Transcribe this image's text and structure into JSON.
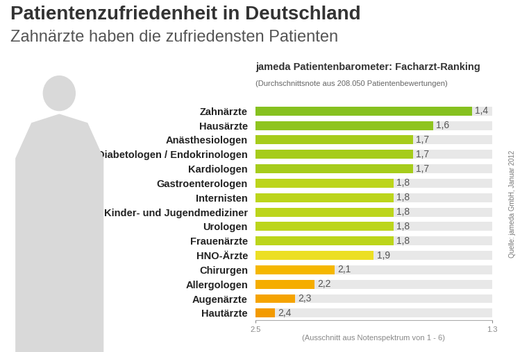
{
  "chart_data": {
    "type": "bar",
    "orientation": "horizontal",
    "title": "Patientenzufriedenheit in Deutschland",
    "subtitle": "Zahnärzte haben die zufriedensten Patienten",
    "chart_title": "jameda Patientenbarometer: Facharzt-Ranking",
    "chart_note": "(Durchschnittsnote aus 208.050 Patientenbewertungen)",
    "source": "Quelle: jameda GmbH, Januar 2012",
    "x_label": "(Ausschnitt aus Notenspektrum von 1 - 6)",
    "categories": [
      "Zahnärzte",
      "Hausärzte",
      "Anästhesiologen",
      "Diabetologen / Endokrinologen",
      "Kardiologen",
      "Gastroenterologen",
      "Internisten",
      "Kinder- und Jugendmediziner",
      "Urologen",
      "Frauenärzte",
      "HNO-Ärzte",
      "Chirurgen",
      "Allergologen",
      "Augenärzte",
      "Hautärzte"
    ],
    "values": [
      1.4,
      1.6,
      1.7,
      1.7,
      1.7,
      1.8,
      1.8,
      1.8,
      1.8,
      1.8,
      1.9,
      2.1,
      2.2,
      2.3,
      2.4
    ],
    "value_labels": [
      "1,4",
      "1,6",
      "1,7",
      "1,7",
      "1,7",
      "1,8",
      "1,8",
      "1,8",
      "1,8",
      "1,8",
      "1,9",
      "2,1",
      "2,2",
      "2,3",
      "2,4"
    ],
    "colors": [
      "#86c11f",
      "#8fc41f",
      "#a6cc1b",
      "#a6cc1b",
      "#a6cc1b",
      "#bcd51b",
      "#bcd51b",
      "#bcd51b",
      "#bcd51b",
      "#bcd51b",
      "#ecdf24",
      "#f5b700",
      "#f5ad00",
      "#f5a300",
      "#f39a00"
    ],
    "xlim": [
      2.5,
      1.3
    ],
    "xticks": [
      2.5,
      1.3
    ],
    "data_labels": true,
    "grid": false
  }
}
